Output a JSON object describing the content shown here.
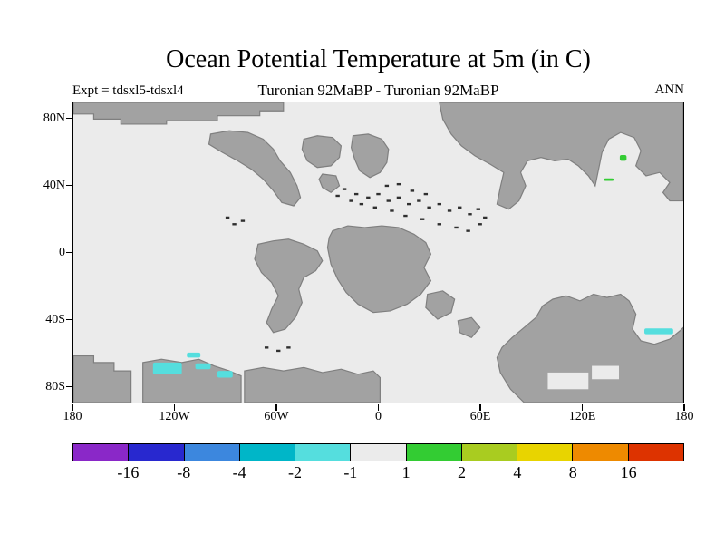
{
  "title": "Ocean Potential Temperature at 5m (in C)",
  "header": {
    "experiment_label": "Expt = tdsxl5-tdsxl4",
    "subtitle": "Turonian 92MaBP - Turonian 92MaBP",
    "season_label": "ANN"
  },
  "colors": {
    "land": "#a2a2a2",
    "coast": "#7f7f7f",
    "ocean": "#ebebeb",
    "islet": "#2f2f2f",
    "frame": "#000000"
  },
  "axes": {
    "y_ticks": [
      {
        "label": "80N",
        "lat": 80
      },
      {
        "label": "40N",
        "lat": 40
      },
      {
        "label": "0",
        "lat": 0
      },
      {
        "label": "40S",
        "lat": -40
      },
      {
        "label": "80S",
        "lat": -80
      }
    ],
    "x_ticks": [
      {
        "label": "180",
        "lon": -180
      },
      {
        "label": "120W",
        "lon": -120
      },
      {
        "label": "60W",
        "lon": -60
      },
      {
        "label": "0",
        "lon": 0
      },
      {
        "label": "60E",
        "lon": 60
      },
      {
        "label": "120E",
        "lon": 120
      },
      {
        "label": "180",
        "lon": 180
      }
    ]
  },
  "chart_data": {
    "type": "heatmap",
    "field": "Ocean potential temperature difference at 5m",
    "units": "C",
    "season": "ANN",
    "experiment_difference": "tdsxl5 - tdsxl4",
    "era": "Turonian 92MaBP",
    "projection": "equirectangular",
    "lon_range": [
      -180,
      180
    ],
    "lat_range": [
      -90,
      90
    ],
    "background_value_range": [
      -1,
      1
    ],
    "colorbar": {
      "levels": [
        -16,
        -8,
        -4,
        -2,
        -1,
        1,
        2,
        4,
        8,
        16
      ],
      "labels": [
        "-16",
        "-8",
        "-4",
        "-2",
        "-1",
        "1",
        "2",
        "4",
        "8",
        "16"
      ],
      "colors": [
        "#8a28c8",
        "#2828cf",
        "#3c87de",
        "#00b6c8",
        "#55dede",
        "#ebebeb",
        "#33cc33",
        "#a9cc20",
        "#e8d400",
        "#ee8a00",
        "#dd3300"
      ]
    },
    "anomalies": [
      {
        "class_label": "-2 to -1",
        "color_index": 4,
        "cells": [
          [
            -113,
            -60,
            -105,
            -63
          ],
          [
            -133,
            -66,
            -116,
            -73
          ],
          [
            -108,
            -66.5,
            -99,
            -70
          ],
          [
            -95,
            -71,
            -86,
            -75
          ],
          [
            157,
            -45.5,
            174,
            -49
          ]
        ]
      },
      {
        "class_label": "1 to 2",
        "color_index": 6,
        "cells": [
          [
            142.5,
            58.5,
            146.5,
            55
          ],
          [
            133,
            44.5,
            139,
            43
          ]
        ]
      }
    ],
    "land_polygons": [
      {
        "name": "arctic-west-strip",
        "points": [
          [
            -180,
            90
          ],
          [
            -56,
            90
          ],
          [
            -56,
            85
          ],
          [
            -70,
            85
          ],
          [
            -70,
            82
          ],
          [
            -95,
            82
          ],
          [
            -95,
            79
          ],
          [
            -125,
            79
          ],
          [
            -125,
            77
          ],
          [
            -152,
            77
          ],
          [
            -152,
            80
          ],
          [
            -168,
            80
          ],
          [
            -168,
            83
          ],
          [
            -180,
            83
          ]
        ]
      },
      {
        "name": "north-america",
        "points": [
          [
            -99,
            71
          ],
          [
            -88,
            73
          ],
          [
            -77,
            72
          ],
          [
            -68,
            68
          ],
          [
            -62,
            62
          ],
          [
            -58,
            55
          ],
          [
            -52,
            48
          ],
          [
            -48,
            40
          ],
          [
            -46,
            33
          ],
          [
            -50,
            28
          ],
          [
            -57,
            30
          ],
          [
            -62,
            37
          ],
          [
            -68,
            44
          ],
          [
            -75,
            50
          ],
          [
            -83,
            55
          ],
          [
            -92,
            60
          ],
          [
            -100,
            65
          ]
        ]
      },
      {
        "name": "north-atlantic-block",
        "points": [
          [
            -44,
            68
          ],
          [
            -36,
            70
          ],
          [
            -27,
            69
          ],
          [
            -22,
            64
          ],
          [
            -23,
            57
          ],
          [
            -28,
            52
          ],
          [
            -36,
            51
          ],
          [
            -42,
            55
          ],
          [
            -45,
            62
          ]
        ]
      },
      {
        "name": "europe-block",
        "points": [
          [
            -15,
            70
          ],
          [
            -6,
            71
          ],
          [
            2,
            68
          ],
          [
            6,
            62
          ],
          [
            5,
            54
          ],
          [
            1,
            48
          ],
          [
            -5,
            45
          ],
          [
            -11,
            49
          ],
          [
            -14,
            56
          ],
          [
            -16,
            63
          ]
        ]
      },
      {
        "name": "iberia-fragment",
        "points": [
          [
            -33,
            47
          ],
          [
            -25,
            46
          ],
          [
            -23,
            40
          ],
          [
            -28,
            36
          ],
          [
            -33,
            39
          ],
          [
            -35,
            44
          ]
        ]
      },
      {
        "name": "asia",
        "points": [
          [
            36,
            90
          ],
          [
            180,
            90
          ],
          [
            180,
            31
          ],
          [
            172,
            31
          ],
          [
            168,
            36
          ],
          [
            172,
            42
          ],
          [
            166,
            48
          ],
          [
            158,
            46
          ],
          [
            152,
            52
          ],
          [
            155,
            61
          ],
          [
            151,
            69
          ],
          [
            143,
            72
          ],
          [
            136,
            68
          ],
          [
            132,
            60
          ],
          [
            130,
            50
          ],
          [
            128,
            40
          ],
          [
            124,
            46
          ],
          [
            118,
            52
          ],
          [
            112,
            56
          ],
          [
            104,
            55
          ],
          [
            96,
            57
          ],
          [
            88,
            55
          ],
          [
            84,
            48
          ],
          [
            87,
            40
          ],
          [
            83,
            31
          ],
          [
            77,
            26
          ],
          [
            70,
            29
          ],
          [
            72,
            39
          ],
          [
            74,
            48
          ],
          [
            66,
            53
          ],
          [
            57,
            58
          ],
          [
            49,
            64
          ],
          [
            43,
            71
          ],
          [
            38,
            80
          ]
        ]
      },
      {
        "name": "south-america",
        "points": [
          [
            -71,
            5
          ],
          [
            -62,
            7
          ],
          [
            -53,
            8
          ],
          [
            -44,
            5
          ],
          [
            -36,
            1
          ],
          [
            -33,
            -5
          ],
          [
            -37,
            -11
          ],
          [
            -44,
            -15
          ],
          [
            -47,
            -22
          ],
          [
            -45,
            -30
          ],
          [
            -49,
            -39
          ],
          [
            -55,
            -46
          ],
          [
            -62,
            -48
          ],
          [
            -66,
            -42
          ],
          [
            -63,
            -34
          ],
          [
            -59,
            -26
          ],
          [
            -63,
            -18
          ],
          [
            -69,
            -12
          ],
          [
            -73,
            -4
          ]
        ]
      },
      {
        "name": "africa",
        "points": [
          [
            -27,
            13
          ],
          [
            -18,
            16
          ],
          [
            -8,
            15
          ],
          [
            2,
            16
          ],
          [
            12,
            15
          ],
          [
            21,
            11
          ],
          [
            28,
            6
          ],
          [
            31,
            -1
          ],
          [
            27,
            -9
          ],
          [
            31,
            -17
          ],
          [
            25,
            -25
          ],
          [
            17,
            -31
          ],
          [
            7,
            -35
          ],
          [
            -3,
            -36
          ],
          [
            -12,
            -31
          ],
          [
            -19,
            -24
          ],
          [
            -24,
            -16
          ],
          [
            -28,
            -7
          ],
          [
            -30,
            3
          ],
          [
            -29,
            9
          ]
        ]
      },
      {
        "name": "india-fragment",
        "points": [
          [
            29,
            -25
          ],
          [
            38,
            -23
          ],
          [
            45,
            -28
          ],
          [
            43,
            -36
          ],
          [
            35,
            -40
          ],
          [
            28,
            -33
          ]
        ]
      },
      {
        "name": "madagascar-fragment",
        "points": [
          [
            47,
            -41
          ],
          [
            55,
            -39
          ],
          [
            60,
            -45
          ],
          [
            55,
            -51
          ],
          [
            48,
            -48
          ]
        ]
      },
      {
        "name": "antarctica-west-1",
        "points": [
          [
            -180,
            -62
          ],
          [
            -168,
            -62
          ],
          [
            -168,
            -66
          ],
          [
            -156,
            -66
          ],
          [
            -156,
            -71
          ],
          [
            -146,
            -71
          ],
          [
            -146,
            -90
          ],
          [
            -180,
            -90
          ]
        ]
      },
      {
        "name": "antarctica-west-2",
        "points": [
          [
            -139,
            -66
          ],
          [
            -128,
            -64
          ],
          [
            -116,
            -66
          ],
          [
            -106,
            -64
          ],
          [
            -97,
            -68
          ],
          [
            -88,
            -71
          ],
          [
            -81,
            -74
          ],
          [
            -81,
            -90
          ],
          [
            -139,
            -90
          ]
        ]
      },
      {
        "name": "antarctica-center",
        "points": [
          [
            -79,
            -71
          ],
          [
            -68,
            -69
          ],
          [
            -56,
            -71
          ],
          [
            -44,
            -69
          ],
          [
            -33,
            -72
          ],
          [
            -22,
            -70
          ],
          [
            -12,
            -73
          ],
          [
            -3,
            -71
          ],
          [
            1,
            -75
          ],
          [
            1,
            -90
          ],
          [
            -79,
            -90
          ]
        ]
      },
      {
        "name": "australo-antarctica",
        "points": [
          [
            73,
            -57
          ],
          [
            79,
            -51
          ],
          [
            86,
            -45
          ],
          [
            93,
            -39
          ],
          [
            97,
            -32
          ],
          [
            103,
            -28
          ],
          [
            111,
            -26
          ],
          [
            119,
            -29
          ],
          [
            127,
            -25
          ],
          [
            135,
            -27
          ],
          [
            143,
            -25
          ],
          [
            148,
            -29
          ],
          [
            152,
            -37
          ],
          [
            150,
            -46
          ],
          [
            155,
            -53
          ],
          [
            163,
            -55
          ],
          [
            172,
            -52
          ],
          [
            178,
            -47
          ],
          [
            180,
            -45
          ],
          [
            180,
            -90
          ],
          [
            86,
            -90
          ],
          [
            78,
            -82
          ],
          [
            72,
            -72
          ],
          [
            70,
            -63
          ]
        ]
      }
    ],
    "water_holes": [
      [
        100,
        -72,
        124,
        -82
      ],
      [
        126,
        -68,
        142,
        -76
      ]
    ],
    "islets": [
      [
        -20,
        38
      ],
      [
        -13,
        35
      ],
      [
        -6,
        33
      ],
      [
        0,
        35
      ],
      [
        6,
        31
      ],
      [
        12,
        33
      ],
      [
        18,
        29
      ],
      [
        24,
        31
      ],
      [
        30,
        27
      ],
      [
        36,
        29
      ],
      [
        42,
        25
      ],
      [
        48,
        27
      ],
      [
        54,
        23
      ],
      [
        59,
        26
      ],
      [
        63,
        21
      ],
      [
        -2,
        27
      ],
      [
        8,
        25
      ],
      [
        16,
        22
      ],
      [
        26,
        20
      ],
      [
        36,
        17
      ],
      [
        46,
        15
      ],
      [
        53,
        13
      ],
      [
        60,
        17
      ],
      [
        -10,
        29
      ],
      [
        -16,
        31
      ],
      [
        -24,
        34
      ],
      [
        5,
        40
      ],
      [
        12,
        41
      ],
      [
        20,
        37
      ],
      [
        28,
        35
      ],
      [
        -89,
        21
      ],
      [
        -85,
        17
      ],
      [
        -80,
        19
      ],
      [
        -66,
        -57
      ],
      [
        -59,
        -59
      ],
      [
        -53,
        -57
      ]
    ]
  }
}
